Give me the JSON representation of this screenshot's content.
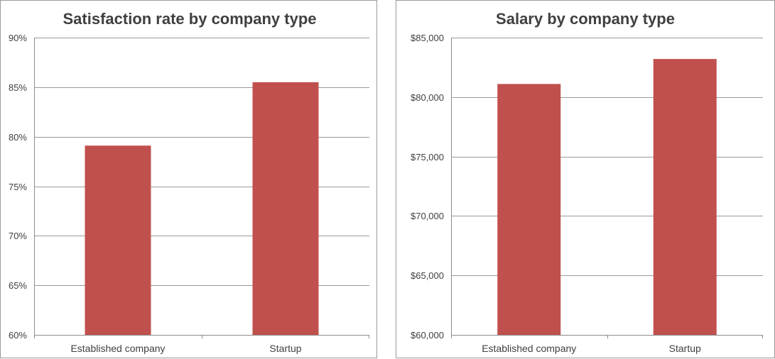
{
  "chart_data": [
    {
      "type": "bar",
      "title": "Satisfaction rate by company type",
      "xlabel": "",
      "ylabel": "",
      "categories": [
        "Established company",
        "Startup"
      ],
      "values": [
        79.1,
        85.5
      ],
      "unit": "%",
      "ylim": [
        60,
        90
      ],
      "yticks": [
        60,
        65,
        70,
        75,
        80,
        85,
        90
      ],
      "ytick_labels": [
        "60%",
        "65%",
        "70%",
        "75%",
        "80%",
        "85%",
        "90%"
      ],
      "grid": true,
      "legend": "none",
      "bar_color": "#c0504d"
    },
    {
      "type": "bar",
      "title": "Salary by company type",
      "xlabel": "",
      "ylabel": "",
      "categories": [
        "Established company",
        "Startup"
      ],
      "values": [
        81100,
        83200
      ],
      "unit": "$",
      "ylim": [
        60000,
        85000
      ],
      "yticks": [
        60000,
        65000,
        70000,
        75000,
        80000,
        85000
      ],
      "ytick_labels": [
        "$60,000",
        "$65,000",
        "$70,000",
        "$75,000",
        "$80,000",
        "$85,000"
      ],
      "grid": true,
      "legend": "none",
      "bar_color": "#c0504d"
    }
  ]
}
